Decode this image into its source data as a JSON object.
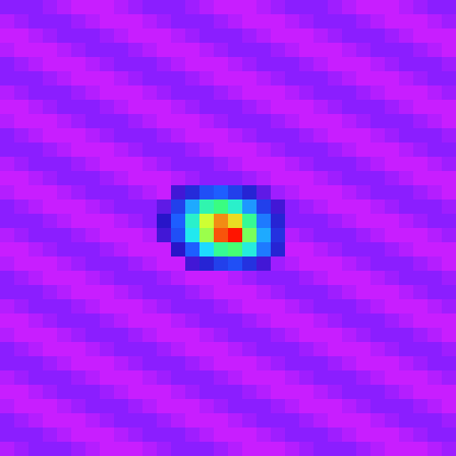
{
  "chart_data": {
    "type": "heatmap",
    "tick_labels": false,
    "cells": [
      [
        5,
        5,
        5,
        4,
        3,
        2,
        2,
        2,
        3,
        4,
        5,
        5,
        5,
        4,
        3,
        2,
        2,
        2,
        3,
        4,
        5,
        5,
        5,
        4,
        3,
        2,
        2,
        2,
        3,
        4,
        5,
        5
      ],
      [
        3,
        4,
        5,
        5,
        5,
        4,
        3,
        2,
        2,
        2,
        3,
        4,
        5,
        5,
        5,
        4,
        3,
        2,
        2,
        2,
        3,
        4,
        5,
        5,
        5,
        4,
        3,
        2,
        2,
        2,
        3,
        4
      ],
      [
        2,
        2,
        3,
        4,
        5,
        5,
        5,
        4,
        3,
        2,
        2,
        2,
        3,
        4,
        5,
        5,
        5,
        4,
        3,
        2,
        2,
        2,
        3,
        4,
        5,
        5,
        5,
        4,
        3,
        2,
        2,
        2
      ],
      [
        3,
        2,
        2,
        2,
        3,
        4,
        5,
        5,
        5,
        4,
        3,
        2,
        2,
        2,
        3,
        4,
        5,
        5,
        5,
        4,
        3,
        2,
        2,
        2,
        3,
        4,
        5,
        5,
        5,
        4,
        3,
        2
      ],
      [
        5,
        4,
        3,
        2,
        2,
        2,
        3,
        4,
        5,
        5,
        5,
        4,
        3,
        2,
        2,
        2,
        3,
        4,
        5,
        5,
        5,
        4,
        3,
        2,
        2,
        2,
        3,
        4,
        5,
        5,
        5,
        4
      ],
      [
        5,
        5,
        5,
        4,
        3,
        2,
        2,
        2,
        3,
        4,
        5,
        5,
        5,
        4,
        3,
        2,
        2,
        2,
        3,
        4,
        5,
        5,
        5,
        4,
        3,
        2,
        2,
        2,
        3,
        4,
        5,
        5
      ],
      [
        3,
        4,
        5,
        5,
        5,
        4,
        3,
        2,
        2,
        2,
        3,
        4,
        5,
        5,
        5,
        4,
        3,
        2,
        2,
        2,
        3,
        4,
        5,
        5,
        5,
        4,
        3,
        2,
        2,
        2,
        3,
        4
      ],
      [
        2,
        2,
        3,
        4,
        5,
        5,
        5,
        4,
        3,
        2,
        2,
        2,
        3,
        4,
        5,
        5,
        5,
        4,
        3,
        2,
        2,
        2,
        3,
        4,
        5,
        5,
        5,
        4,
        3,
        2,
        2,
        2
      ],
      [
        3,
        2,
        2,
        2,
        3,
        4,
        5,
        5,
        5,
        4,
        3,
        2,
        2,
        2,
        3,
        4,
        5,
        5,
        5,
        4,
        3,
        2,
        2,
        2,
        3,
        4,
        5,
        5,
        5,
        4,
        3,
        2
      ],
      [
        5,
        4,
        3,
        2,
        2,
        2,
        3,
        4,
        5,
        5,
        5,
        4,
        3,
        2,
        2,
        2,
        3,
        4,
        5,
        5,
        5,
        4,
        3,
        2,
        2,
        2,
        3,
        4,
        5,
        5,
        5,
        4
      ],
      [
        5,
        5,
        5,
        4,
        3,
        2,
        2,
        2,
        3,
        4,
        5,
        5,
        5,
        4,
        3,
        2,
        2,
        2,
        3,
        4,
        5,
        5,
        5,
        4,
        3,
        2,
        2,
        2,
        3,
        4,
        5,
        5
      ],
      [
        3,
        4,
        5,
        5,
        5,
        4,
        3,
        2,
        2,
        2,
        3,
        4,
        5,
        5,
        5,
        4,
        3,
        2,
        2,
        2,
        3,
        4,
        5,
        5,
        5,
        4,
        3,
        2,
        2,
        2,
        3,
        4
      ],
      [
        2,
        2,
        3,
        4,
        5,
        5,
        5,
        4,
        3,
        2,
        2,
        2,
        3,
        4,
        5,
        5,
        5,
        4,
        3,
        2,
        2,
        2,
        3,
        4,
        5,
        5,
        5,
        4,
        3,
        2,
        2,
        2
      ],
      [
        3,
        2,
        2,
        2,
        3,
        4,
        5,
        5,
        5,
        4,
        3,
        2,
        10,
        15,
        20,
        22,
        18,
        14,
        8,
        4,
        3,
        2,
        2,
        2,
        3,
        4,
        5,
        5,
        5,
        4,
        3,
        2
      ],
      [
        5,
        4,
        3,
        2,
        2,
        2,
        3,
        4,
        5,
        5,
        5,
        8,
        18,
        30,
        45,
        50,
        42,
        28,
        18,
        10,
        5,
        4,
        3,
        2,
        2,
        2,
        3,
        4,
        5,
        5,
        5,
        4
      ],
      [
        5,
        5,
        5,
        4,
        3,
        2,
        2,
        2,
        3,
        4,
        5,
        12,
        22,
        42,
        68,
        85,
        75,
        48,
        25,
        14,
        5,
        5,
        5,
        4,
        3,
        2,
        2,
        2,
        3,
        4,
        5,
        5
      ],
      [
        3,
        4,
        5,
        5,
        5,
        4,
        3,
        2,
        2,
        2,
        3,
        10,
        20,
        38,
        62,
        92,
        100,
        58,
        30,
        16,
        3,
        4,
        5,
        5,
        5,
        4,
        3,
        2,
        2,
        2,
        3,
        4
      ],
      [
        2,
        2,
        3,
        4,
        5,
        5,
        5,
        4,
        3,
        2,
        2,
        2,
        12,
        22,
        35,
        48,
        52,
        40,
        25,
        14,
        2,
        2,
        3,
        4,
        5,
        5,
        5,
        4,
        3,
        2,
        2,
        2
      ],
      [
        3,
        2,
        2,
        2,
        3,
        4,
        5,
        5,
        5,
        4,
        3,
        2,
        2,
        10,
        14,
        18,
        20,
        16,
        10,
        4,
        3,
        2,
        2,
        2,
        3,
        4,
        5,
        5,
        5,
        4,
        3,
        2
      ],
      [
        5,
        4,
        3,
        2,
        2,
        2,
        3,
        4,
        5,
        5,
        5,
        4,
        3,
        2,
        2,
        2,
        3,
        4,
        5,
        5,
        5,
        4,
        3,
        2,
        2,
        2,
        3,
        4,
        5,
        5,
        5,
        4
      ],
      [
        5,
        5,
        5,
        4,
        3,
        2,
        2,
        2,
        3,
        4,
        5,
        5,
        5,
        4,
        3,
        2,
        2,
        2,
        3,
        4,
        5,
        5,
        5,
        4,
        3,
        2,
        2,
        2,
        3,
        4,
        5,
        5
      ],
      [
        3,
        4,
        5,
        5,
        5,
        4,
        3,
        2,
        2,
        2,
        3,
        4,
        5,
        5,
        5,
        4,
        3,
        2,
        2,
        2,
        3,
        4,
        5,
        5,
        5,
        4,
        3,
        2,
        2,
        2,
        3,
        4
      ],
      [
        2,
        2,
        3,
        4,
        5,
        5,
        5,
        4,
        3,
        2,
        2,
        2,
        3,
        4,
        5,
        5,
        5,
        4,
        3,
        2,
        2,
        2,
        3,
        4,
        5,
        5,
        5,
        4,
        3,
        2,
        2,
        2
      ],
      [
        3,
        2,
        2,
        2,
        3,
        4,
        5,
        5,
        5,
        4,
        3,
        2,
        2,
        2,
        3,
        4,
        5,
        5,
        5,
        4,
        3,
        2,
        2,
        2,
        3,
        4,
        5,
        5,
        5,
        4,
        3,
        2
      ],
      [
        5,
        4,
        3,
        2,
        2,
        2,
        3,
        4,
        5,
        5,
        5,
        4,
        3,
        2,
        2,
        2,
        3,
        4,
        5,
        5,
        5,
        4,
        3,
        2,
        2,
        2,
        3,
        4,
        5,
        5,
        5,
        4
      ],
      [
        5,
        5,
        5,
        4,
        3,
        2,
        2,
        2,
        3,
        4,
        5,
        5,
        5,
        4,
        3,
        2,
        2,
        2,
        3,
        4,
        5,
        5,
        5,
        4,
        3,
        2,
        2,
        2,
        3,
        4,
        5,
        5
      ],
      [
        3,
        4,
        5,
        5,
        5,
        4,
        3,
        2,
        2,
        2,
        3,
        4,
        5,
        5,
        5,
        4,
        3,
        2,
        2,
        2,
        3,
        4,
        5,
        5,
        5,
        4,
        3,
        2,
        2,
        2,
        3,
        4
      ],
      [
        2,
        2,
        3,
        4,
        5,
        5,
        5,
        4,
        3,
        2,
        2,
        2,
        3,
        4,
        5,
        5,
        5,
        4,
        3,
        2,
        2,
        2,
        3,
        4,
        5,
        5,
        5,
        4,
        3,
        2,
        2,
        2
      ],
      [
        3,
        2,
        2,
        2,
        3,
        4,
        5,
        5,
        5,
        4,
        3,
        2,
        2,
        2,
        3,
        4,
        5,
        5,
        5,
        4,
        3,
        2,
        2,
        2,
        3,
        4,
        5,
        5,
        5,
        4,
        3,
        2
      ],
      [
        5,
        4,
        3,
        2,
        2,
        2,
        3,
        4,
        5,
        5,
        5,
        4,
        3,
        2,
        2,
        2,
        3,
        4,
        5,
        5,
        5,
        4,
        3,
        2,
        2,
        2,
        3,
        4,
        5,
        5,
        5,
        4
      ],
      [
        5,
        5,
        5,
        4,
        3,
        2,
        2,
        2,
        3,
        4,
        5,
        5,
        5,
        4,
        3,
        2,
        2,
        2,
        3,
        4,
        5,
        5,
        5,
        4,
        3,
        2,
        2,
        2,
        3,
        4,
        5,
        5
      ],
      [
        3,
        4,
        5,
        5,
        5,
        4,
        3,
        2,
        2,
        2,
        3,
        4,
        5,
        5,
        5,
        4,
        3,
        2,
        2,
        2,
        3,
        4,
        5,
        5,
        5,
        4,
        3,
        2,
        2,
        2,
        3,
        4
      ]
    ]
  }
}
